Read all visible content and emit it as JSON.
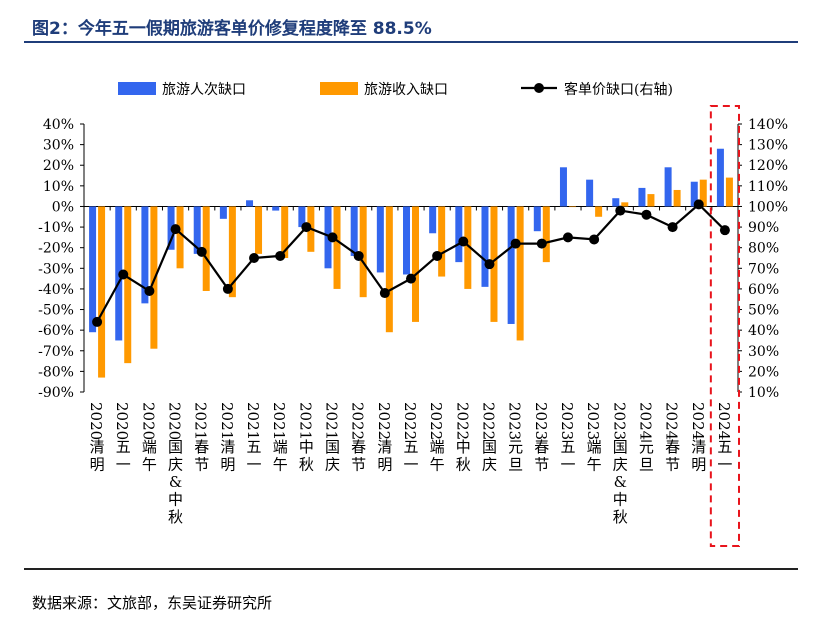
{
  "figure": {
    "title": "图2：今年五一假期旅游客单价修复程度降至 88.5%",
    "source": "数据来源：文旅部，东吴证券研究所"
  },
  "colors": {
    "bar1": "#3366ee",
    "bar2": "#ff9900",
    "line": "#000000",
    "highlight": "#e8141c",
    "title": "#1f3d7a"
  },
  "chart_data": {
    "type": "bar+line",
    "categories": [
      "2020清明",
      "2020五一",
      "2020端午",
      "2020国庆&中秋",
      "2021春节",
      "2021清明",
      "2021五一",
      "2021端午",
      "2021中秋",
      "2021国庆",
      "2022春节",
      "2022清明",
      "2022五一",
      "2022端午",
      "2022中秋",
      "2022国庆",
      "2023元旦",
      "2023春节",
      "2023五一",
      "2023端午",
      "2023国庆&中秋",
      "2024元旦",
      "2024春节",
      "2024清明",
      "2024五一"
    ],
    "series": [
      {
        "name": "旅游人次缺口",
        "kind": "bar",
        "axis": "left",
        "values": [
          -61,
          -65,
          -47,
          -21,
          -23,
          -6,
          3,
          -2,
          -10,
          -30,
          -24,
          -32,
          -33,
          -13,
          -27,
          -39,
          -57,
          -12,
          19,
          13,
          4,
          9,
          19,
          12,
          28
        ]
      },
      {
        "name": "旅游收入缺口",
        "kind": "bar",
        "axis": "left",
        "values": [
          -83,
          -76,
          -69,
          -30,
          -41,
          -44,
          -23,
          -25,
          -22,
          -40,
          -44,
          -61,
          -56,
          -34,
          -40,
          -56,
          -65,
          -27,
          0,
          -5,
          2,
          6,
          8,
          13,
          14
        ]
      },
      {
        "name": "客单价缺口(右轴)",
        "kind": "line",
        "axis": "right",
        "values": [
          44,
          67,
          59,
          89,
          78,
          60,
          75,
          76,
          90,
          85,
          76,
          58,
          65,
          76,
          83,
          72,
          82,
          82,
          85,
          84,
          98,
          96,
          90,
          101,
          88.5
        ]
      }
    ],
    "y_left": {
      "min": -90,
      "max": 40,
      "step": 10,
      "ticks": [
        "40%",
        "30%",
        "20%",
        "10%",
        "0%",
        "-10%",
        "-20%",
        "-30%",
        "-40%",
        "-50%",
        "-60%",
        "-70%",
        "-80%",
        "-90%"
      ]
    },
    "y_right": {
      "min": 10,
      "max": 140,
      "step": 10,
      "ticks": [
        "140%",
        "130%",
        "120%",
        "110%",
        "100%",
        "90%",
        "80%",
        "70%",
        "60%",
        "50%",
        "40%",
        "30%",
        "20%",
        "10%"
      ]
    },
    "legend_position": "top",
    "highlight_category": "2024五一"
  }
}
